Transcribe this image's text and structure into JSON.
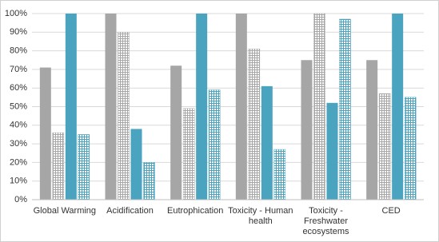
{
  "chart_data": {
    "type": "bar",
    "categories": [
      "Global Warming",
      "Acidification",
      "Eutrophication",
      "Toxicity - Human health",
      "Toxicity - Freshwater ecosystems",
      "CED"
    ],
    "series": [
      {
        "color": "#a6a6a6",
        "hatched": false,
        "values": [
          71,
          100,
          72,
          100,
          75,
          75
        ]
      },
      {
        "color": "#a6a6a6",
        "hatched": true,
        "values": [
          36,
          90,
          49,
          81,
          100,
          57
        ]
      },
      {
        "color": "#4aa3bf",
        "hatched": false,
        "values": [
          100,
          38,
          100,
          61,
          52,
          100
        ]
      },
      {
        "color": "#4aa3bf",
        "hatched": true,
        "values": [
          35,
          20,
          59,
          27,
          97,
          55
        ]
      }
    ],
    "ylim": [
      0,
      100
    ],
    "yticks": [
      {
        "value": 0,
        "label": "0%"
      },
      {
        "value": 10,
        "label": "10%"
      },
      {
        "value": 20,
        "label": "20%"
      },
      {
        "value": 30,
        "label": "30%"
      },
      {
        "value": 40,
        "label": "40%"
      },
      {
        "value": 50,
        "label": "50%"
      },
      {
        "value": 60,
        "label": "60%"
      },
      {
        "value": 70,
        "label": "70%"
      },
      {
        "value": 80,
        "label": "80%"
      },
      {
        "value": 90,
        "label": "90%"
      },
      {
        "value": 100,
        "label": "100%"
      }
    ],
    "grid": true
  }
}
